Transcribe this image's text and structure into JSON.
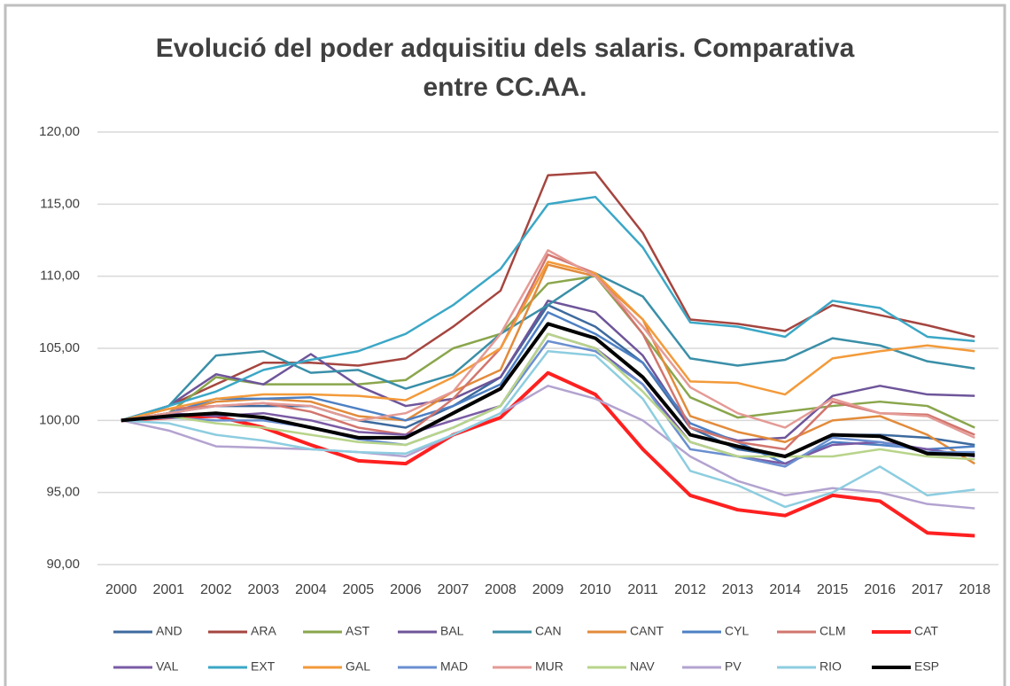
{
  "chart_data": {
    "type": "line",
    "title": [
      "Evolució del poder adquisitiu dels salaris. Comparativa",
      "entre CC.AA."
    ],
    "categories": [
      "2000",
      "2001",
      "2002",
      "2003",
      "2004",
      "2005",
      "2006",
      "2007",
      "2008",
      "2009",
      "2010",
      "2011",
      "2012",
      "2013",
      "2014",
      "2015",
      "2016",
      "2017",
      "2018"
    ],
    "ylim": [
      90,
      120
    ],
    "yticks": [
      {
        "value": 90,
        "label": "90,00"
      },
      {
        "value": 95,
        "label": "95,00"
      },
      {
        "value": 100,
        "label": "100,00"
      },
      {
        "value": 105,
        "label": "105,00"
      },
      {
        "value": 110,
        "label": "110,00"
      },
      {
        "value": 115,
        "label": "115,00"
      },
      {
        "value": 120,
        "label": "120,00"
      }
    ],
    "grid": true,
    "legend": "bottom",
    "series": [
      {
        "name": "AND",
        "color": "#3d6a9e",
        "values": [
          100,
          100.5,
          101,
          101,
          101,
          100,
          99.5,
          101,
          103,
          108,
          106.5,
          104,
          99.5,
          98,
          97.5,
          99,
          99,
          98.8,
          98.3
        ]
      },
      {
        "name": "ARA",
        "color": "#a5453f",
        "values": [
          100,
          101,
          102.5,
          104,
          104,
          103.8,
          104.3,
          106.5,
          109,
          117,
          117.2,
          113,
          107,
          106.7,
          106.2,
          108,
          107.3,
          106.6,
          105.8
        ]
      },
      {
        "name": "AST",
        "color": "#8aa64c",
        "values": [
          100,
          100.5,
          103,
          102.5,
          102.5,
          102.5,
          102.8,
          105,
          106,
          109.5,
          110,
          106,
          101.6,
          100.2,
          100.6,
          101,
          101.3,
          101,
          99.5
        ]
      },
      {
        "name": "BAL",
        "color": "#6e559a",
        "values": [
          100,
          101,
          103.2,
          102.5,
          104.6,
          102.4,
          101,
          101.5,
          103,
          108.3,
          107.5,
          104.5,
          99.5,
          98.6,
          98.8,
          101.7,
          102.4,
          101.8,
          101.7
        ]
      },
      {
        "name": "CAN",
        "color": "#3a8fa8",
        "values": [
          100,
          101,
          104.5,
          104.8,
          103.3,
          103.5,
          102.2,
          103.2,
          106,
          108,
          110.2,
          108.6,
          104.3,
          103.8,
          104.2,
          105.7,
          105.2,
          104.1,
          103.6
        ]
      },
      {
        "name": "CANT",
        "color": "#e28b3b",
        "values": [
          100,
          100.5,
          101.3,
          101.5,
          101.3,
          100.3,
          100,
          102,
          103.5,
          110.8,
          110,
          107,
          100.3,
          99.2,
          98.5,
          100,
          100.3,
          99,
          97
        ]
      },
      {
        "name": "CYL",
        "color": "#4d80c4",
        "values": [
          100,
          100.5,
          101.5,
          101.5,
          101.6,
          100.8,
          100,
          101,
          102.5,
          107.5,
          106,
          104,
          99.8,
          98.5,
          97,
          98.5,
          98.3,
          98,
          98.2
        ]
      },
      {
        "name": "CLM",
        "color": "#d2756e",
        "values": [
          100,
          100.8,
          101,
          101.2,
          100.6,
          99.5,
          99,
          101.5,
          105,
          111.5,
          110.2,
          106,
          99.5,
          98.5,
          98,
          101.3,
          100.5,
          100.4,
          99
        ]
      },
      {
        "name": "CAT",
        "color": "#ff2020",
        "values": [
          100,
          100.2,
          100.3,
          99.5,
          98.3,
          97.2,
          97,
          99,
          100.2,
          103.3,
          101.8,
          98,
          94.8,
          93.8,
          93.4,
          94.8,
          94.4,
          92.2,
          92
        ]
      },
      {
        "name": "VAL",
        "color": "#7a5ba5",
        "values": [
          100,
          100.5,
          100.3,
          100.5,
          100,
          99.2,
          99,
          100,
          101,
          106,
          105,
          102.5,
          98.5,
          97.5,
          97,
          98.3,
          98.5,
          98,
          97.5
        ]
      },
      {
        "name": "EXT",
        "color": "#3ba7c6",
        "values": [
          100,
          101,
          102,
          103.5,
          104.2,
          104.8,
          106,
          108,
          110.5,
          115,
          115.5,
          112,
          106.8,
          106.5,
          105.8,
          108.3,
          107.8,
          105.8,
          105.5
        ]
      },
      {
        "name": "GAL",
        "color": "#f39a3a",
        "values": [
          100,
          100.8,
          101.5,
          101.8,
          101.8,
          101.7,
          101.4,
          103,
          105,
          111,
          110.2,
          107,
          102.7,
          102.6,
          101.8,
          104.3,
          104.8,
          105.2,
          104.8
        ]
      },
      {
        "name": "MAD",
        "color": "#6a8fd0",
        "values": [
          100,
          100.2,
          100,
          100,
          99.5,
          98.7,
          98.3,
          99.5,
          101,
          105.5,
          104.8,
          102.5,
          98,
          97.5,
          96.8,
          98.8,
          98.5,
          97.8,
          97.8
        ]
      },
      {
        "name": "MUR",
        "color": "#e49a95",
        "values": [
          100,
          100.5,
          101,
          101.2,
          101,
          100,
          100.5,
          102,
          106,
          111.8,
          110,
          106.5,
          102.3,
          100.5,
          99.5,
          101.5,
          100.5,
          100.3,
          98.8
        ]
      },
      {
        "name": "NAV",
        "color": "#b8d48a",
        "values": [
          100,
          100.3,
          99.8,
          99.5,
          99,
          98.5,
          98.3,
          99.5,
          101,
          106,
          105,
          102,
          98.5,
          97.5,
          97.5,
          97.5,
          98,
          97.5,
          97.3
        ]
      },
      {
        "name": "PV",
        "color": "#b3a3d0",
        "values": [
          100,
          99.3,
          98.2,
          98.1,
          98,
          97.8,
          97.5,
          99,
          100.5,
          102.4,
          101.5,
          100,
          97.5,
          95.8,
          94.8,
          95.3,
          95,
          94.2,
          93.9
        ]
      },
      {
        "name": "RIO",
        "color": "#8dcde0",
        "values": [
          100,
          99.8,
          99,
          98.6,
          98,
          97.8,
          97.7,
          99,
          100.5,
          104.8,
          104.5,
          101.5,
          96.5,
          95.5,
          94,
          95,
          96.8,
          94.8,
          95.2
        ]
      },
      {
        "name": "ESP",
        "color": "#000000",
        "values": [
          100,
          100.3,
          100.5,
          100.2,
          99.5,
          98.8,
          98.8,
          100.5,
          102.2,
          106.7,
          105.7,
          103,
          99,
          98.2,
          97.5,
          99,
          98.9,
          97.7,
          97.6
        ]
      }
    ]
  }
}
